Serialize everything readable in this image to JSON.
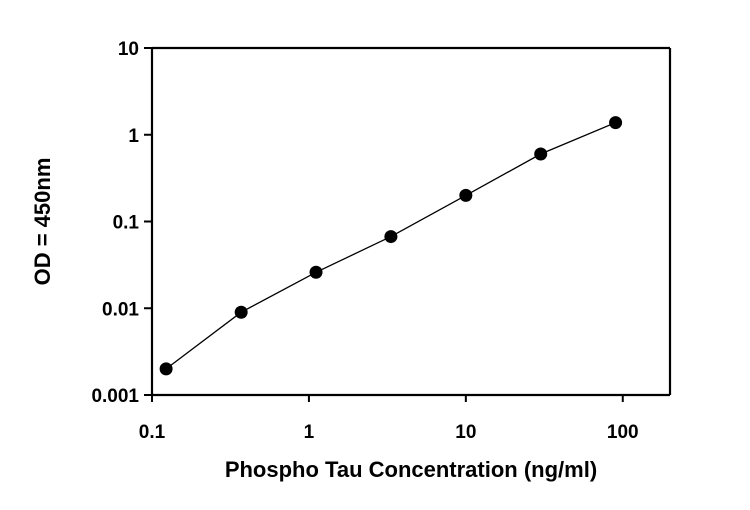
{
  "chart_data": {
    "type": "scatter",
    "xlabel": "Phospho Tau Concentration (ng/ml)",
    "ylabel": "OD = 450nm",
    "xscale": "log",
    "yscale": "log",
    "xlim": [
      0.1,
      200
    ],
    "ylim": [
      0.001,
      10
    ],
    "grid": false,
    "x_ticks": [
      {
        "value": 0.1,
        "label": "0.1"
      },
      {
        "value": 1,
        "label": "1"
      },
      {
        "value": 10,
        "label": "10"
      },
      {
        "value": 100,
        "label": "100"
      }
    ],
    "y_ticks": [
      {
        "value": 0.001,
        "label": "0.001"
      },
      {
        "value": 0.01,
        "label": "0.01"
      },
      {
        "value": 0.1,
        "label": "0.1"
      },
      {
        "value": 1,
        "label": "1"
      },
      {
        "value": 10,
        "label": "10"
      }
    ],
    "series": [
      {
        "points": [
          {
            "x": 0.123,
            "y": 0.002
          },
          {
            "x": 0.37,
            "y": 0.009
          },
          {
            "x": 1.11,
            "y": 0.026
          },
          {
            "x": 3.33,
            "y": 0.067
          },
          {
            "x": 10,
            "y": 0.2
          },
          {
            "x": 30,
            "y": 0.6
          },
          {
            "x": 90,
            "y": 1.38
          }
        ]
      }
    ]
  }
}
